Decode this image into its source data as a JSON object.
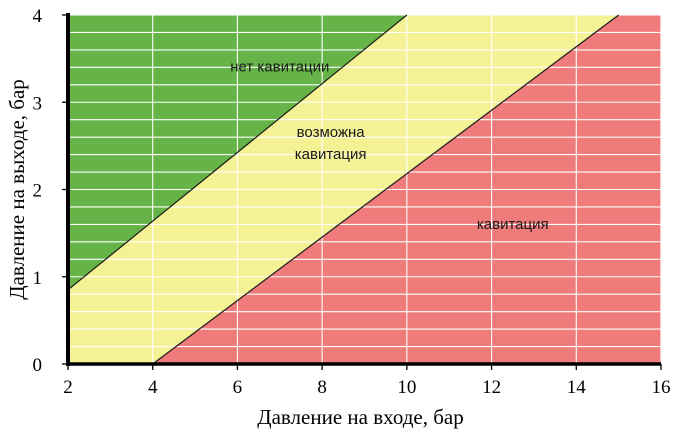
{
  "chart_data": {
    "type": "area",
    "title": "",
    "xlabel": "Давление на входе, бар",
    "ylabel": "Давление на выходе, бар",
    "xlim": [
      2,
      16
    ],
    "ylim": [
      0,
      4
    ],
    "x_ticks": [
      "2",
      "4",
      "6",
      "8",
      "10",
      "12",
      "14",
      "16"
    ],
    "y_ticks": [
      "0",
      "1",
      "2",
      "3",
      "4"
    ],
    "grid": true,
    "boundaries": [
      {
        "x": [
          2,
          10
        ],
        "y": [
          0.85,
          4
        ]
      },
      {
        "x": [
          4,
          15
        ],
        "y": [
          0,
          4
        ]
      }
    ],
    "regions": [
      {
        "label": "нет кавитации",
        "color": "#66b447"
      },
      {
        "label": "возможна кавитация",
        "label_lines": [
          "возможна",
          "кавитация"
        ],
        "color": "#f5f195"
      },
      {
        "label": "кавитация",
        "color": "#f07b7b"
      }
    ],
    "label_positions": [
      {
        "x": 7.0,
        "y": 3.35
      },
      {
        "x": 8.2,
        "y": 2.6
      },
      {
        "x": 12.5,
        "y": 1.55
      }
    ]
  }
}
